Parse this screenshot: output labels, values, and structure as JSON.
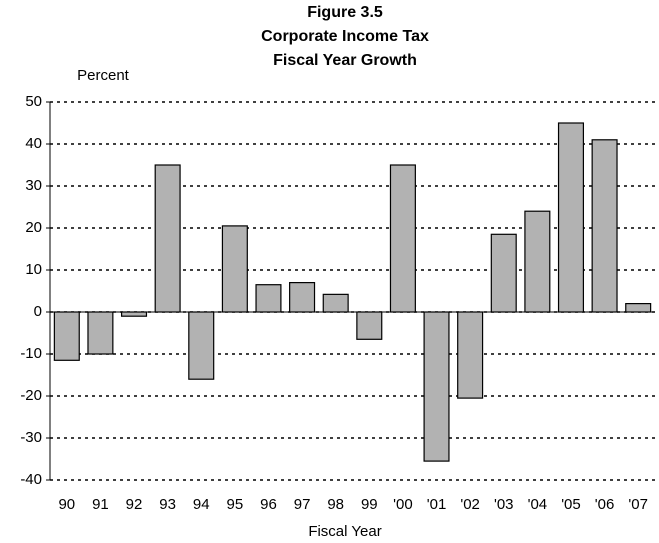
{
  "chart_data": {
    "type": "bar",
    "title": [
      "Figure 3.5",
      "Corporate Income Tax",
      "Fiscal Year Growth"
    ],
    "y_label": "Percent",
    "x_label": "Fiscal Year",
    "categories": [
      "90",
      "91",
      "92",
      "93",
      "94",
      "95",
      "96",
      "97",
      "98",
      "99",
      "'00",
      "'01",
      "'02",
      "'03",
      "'04",
      "'05",
      "'06",
      "'07"
    ],
    "values": [
      -11.5,
      -10,
      -1,
      35,
      -16,
      20.5,
      6.5,
      7,
      4.2,
      -6.5,
      35,
      -35.5,
      -20.5,
      18.5,
      24,
      45,
      41,
      2
    ],
    "color": "#b2b2b2",
    "ylim": [
      -40,
      50
    ],
    "yticks": [
      -40,
      -30,
      -20,
      -10,
      0,
      10,
      20,
      30,
      40,
      50
    ],
    "grid": true
  }
}
